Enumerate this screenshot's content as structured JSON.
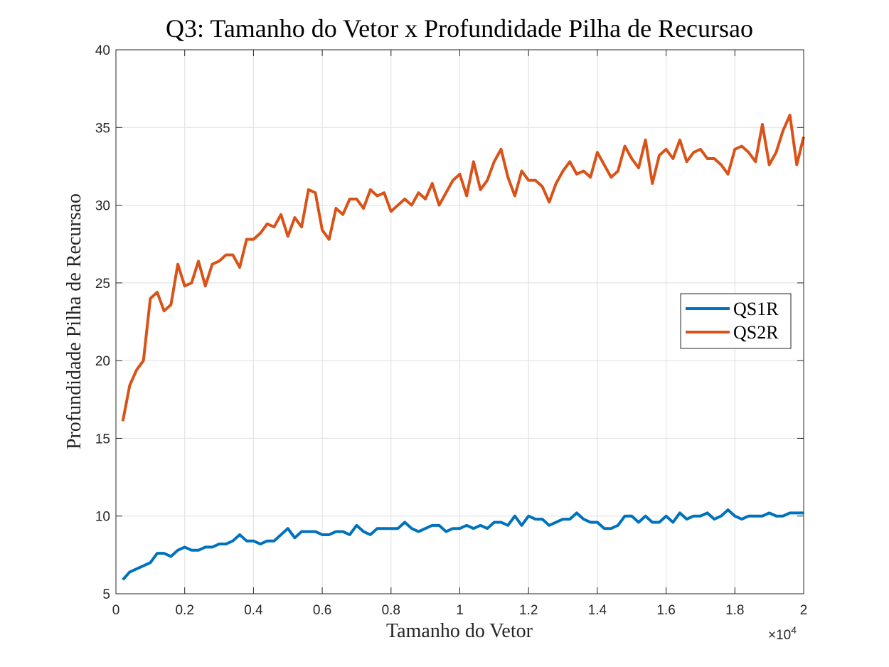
{
  "chart_data": {
    "type": "line",
    "title": "Q3: Tamanho do Vetor x Profundidade Pilha de Recursao",
    "xlabel": "Tamanho do Vetor",
    "ylabel": "Profundidade Pilha de Recursao",
    "x_exponent_base": "×10",
    "x_exponent_power": "4",
    "xlim": [
      0,
      2
    ],
    "ylim": [
      5,
      40
    ],
    "xticks": [
      "0",
      "0.2",
      "0.4",
      "0.6",
      "0.8",
      "1",
      "1.2",
      "1.4",
      "1.6",
      "1.8",
      "2"
    ],
    "yticks": [
      "5",
      "10",
      "15",
      "20",
      "25",
      "30",
      "35",
      "40"
    ],
    "grid": true,
    "legend_position": "right",
    "series": [
      {
        "name": "QS1R",
        "color": "#0072BD",
        "x_start": 0.02,
        "x_step": 0.02,
        "values": [
          5.9,
          6.4,
          6.6,
          6.8,
          7.0,
          7.6,
          7.6,
          7.4,
          7.8,
          8.0,
          7.8,
          7.8,
          8.0,
          8.0,
          8.2,
          8.2,
          8.4,
          8.8,
          8.4,
          8.4,
          8.2,
          8.4,
          8.4,
          8.8,
          9.2,
          8.6,
          9.0,
          9.0,
          9.0,
          8.8,
          8.8,
          9.0,
          9.0,
          8.8,
          9.4,
          9.0,
          8.8,
          9.2,
          9.2,
          9.2,
          9.2,
          9.6,
          9.2,
          9.0,
          9.2,
          9.4,
          9.4,
          9.0,
          9.2,
          9.2,
          9.4,
          9.2,
          9.4,
          9.2,
          9.6,
          9.6,
          9.4,
          10.0,
          9.4,
          10.0,
          9.8,
          9.8,
          9.4,
          9.6,
          9.8,
          9.8,
          10.2,
          9.8,
          9.6,
          9.6,
          9.2,
          9.2,
          9.4,
          10.0,
          10.0,
          9.6,
          10.0,
          9.6,
          9.6,
          10.0,
          9.6,
          10.2,
          9.8,
          10.0,
          10.0,
          10.2,
          9.8,
          10.0,
          10.4,
          10.0,
          9.8,
          10.0,
          10.0,
          10.0,
          10.2,
          10.0,
          10.0,
          10.2,
          10.2,
          10.2
        ]
      },
      {
        "name": "QS2R",
        "color": "#D95319",
        "x_start": 0.02,
        "x_step": 0.02,
        "values": [
          16.1,
          18.4,
          19.4,
          20.0,
          24.0,
          24.4,
          23.2,
          23.6,
          26.2,
          24.8,
          25.0,
          26.4,
          24.8,
          26.2,
          26.4,
          26.8,
          26.8,
          26.0,
          27.8,
          27.8,
          28.2,
          28.8,
          28.6,
          29.4,
          28.0,
          29.2,
          28.6,
          31.0,
          30.8,
          28.4,
          27.8,
          29.8,
          29.4,
          30.4,
          30.4,
          29.8,
          31.0,
          30.6,
          30.8,
          29.6,
          30.0,
          30.4,
          30.0,
          30.8,
          30.4,
          31.4,
          30.0,
          30.8,
          31.6,
          32.0,
          30.6,
          32.8,
          31.0,
          31.6,
          32.8,
          33.6,
          31.8,
          30.6,
          32.2,
          31.6,
          31.6,
          31.2,
          30.2,
          31.4,
          32.2,
          32.8,
          32.0,
          32.2,
          31.8,
          33.4,
          32.6,
          31.8,
          32.2,
          33.8,
          33.0,
          32.4,
          34.2,
          31.4,
          33.2,
          33.6,
          33.0,
          34.2,
          32.8,
          33.4,
          33.6,
          33.0,
          33.0,
          32.6,
          32.0,
          33.6,
          33.8,
          33.4,
          32.8,
          35.2,
          32.6,
          33.4,
          34.8,
          35.8,
          32.6,
          34.4
        ]
      }
    ]
  }
}
